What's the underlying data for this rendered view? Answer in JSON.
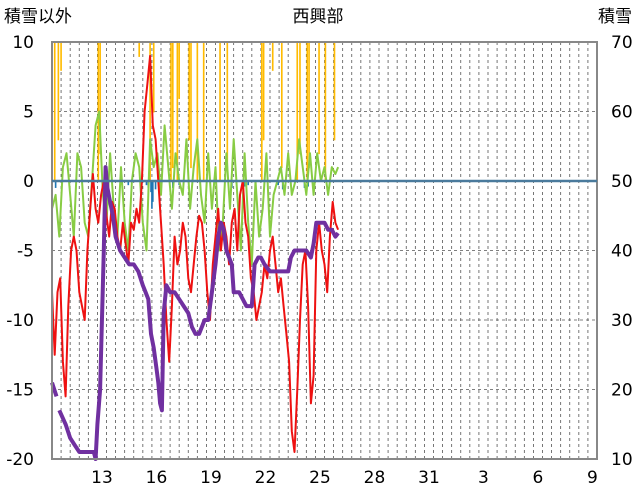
{
  "chart_data": {
    "type": "line",
    "title": "西興部",
    "left_axis_label": "積雪以外",
    "right_axis_label": "積雪",
    "y_left": {
      "min": -20,
      "max": 10,
      "ticks": [
        "10",
        "5",
        "0",
        "-5",
        "-10",
        "-15",
        "-20"
      ]
    },
    "y_right": {
      "min": 10,
      "max": 70,
      "ticks": [
        "70",
        "60",
        "50",
        "40",
        "30",
        "20",
        "10"
      ]
    },
    "x_range": [
      0,
      60
    ],
    "x_tick_labels": [
      {
        "x": 3,
        "label": "13"
      },
      {
        "x": 6,
        "label": "16"
      },
      {
        "x": 9,
        "label": "19"
      },
      {
        "x": 12,
        "label": "22"
      },
      {
        "x": 15,
        "label": "25"
      },
      {
        "x": 18,
        "label": "28"
      },
      {
        "x": 21,
        "label": "31"
      },
      {
        "x": 24,
        "label": "3"
      },
      {
        "x": 27,
        "label": "6"
      },
      {
        "x": 30,
        "label": "9"
      }
    ],
    "grid": {
      "vertical": true,
      "horizontal": true,
      "style": "dashed"
    },
    "colors": {
      "temperature": "#ee1111",
      "sunshine": "#88cc44",
      "precipitation": "#ffbb00",
      "snow_change": "#1f77b4",
      "snow_depth": "#7030a0",
      "frame": "#888888"
    },
    "series": [
      {
        "axis": "left",
        "style": "temperature",
        "points": [
          [
            0,
            -8
          ],
          [
            0.3,
            -12.5
          ],
          [
            0.6,
            -8
          ],
          [
            0.9,
            -7
          ],
          [
            1.2,
            -13
          ],
          [
            1.5,
            -15.5
          ],
          [
            1.8,
            -9
          ],
          [
            2.1,
            -5
          ],
          [
            2.4,
            -4
          ],
          [
            2.7,
            -5
          ],
          [
            3.0,
            -8
          ],
          [
            3.3,
            -9
          ],
          [
            3.6,
            -10
          ],
          [
            3.9,
            -5
          ],
          [
            4.2,
            -2
          ],
          [
            4.5,
            0.5
          ],
          [
            4.8,
            -2
          ],
          [
            5.1,
            -3
          ],
          [
            5.4,
            -1
          ],
          [
            5.7,
            0
          ],
          [
            6.0,
            -2.5
          ],
          [
            6.3,
            -4
          ],
          [
            6.6,
            -1.5
          ],
          [
            6.9,
            -2
          ],
          [
            7.2,
            -4
          ],
          [
            7.5,
            -5
          ],
          [
            7.8,
            -3
          ],
          [
            8.1,
            -4.5
          ],
          [
            8.4,
            -6
          ],
          [
            8.7,
            -3
          ],
          [
            9.0,
            -3.5
          ],
          [
            9.3,
            -2
          ],
          [
            9.6,
            -3
          ],
          [
            9.9,
            0
          ],
          [
            10.2,
            5
          ],
          [
            10.5,
            7
          ],
          [
            10.8,
            9
          ],
          [
            11.1,
            4
          ],
          [
            11.4,
            3
          ],
          [
            11.7,
            0
          ],
          [
            12.0,
            -3
          ],
          [
            12.3,
            -6
          ],
          [
            12.6,
            -10
          ],
          [
            12.9,
            -13
          ],
          [
            13.2,
            -9
          ],
          [
            13.5,
            -4
          ],
          [
            13.8,
            -6
          ],
          [
            14.1,
            -5
          ],
          [
            14.4,
            -3
          ],
          [
            14.7,
            -4
          ],
          [
            15.0,
            -7
          ],
          [
            15.3,
            -8
          ],
          [
            15.6,
            -6
          ],
          [
            15.9,
            -4
          ],
          [
            16.2,
            -2.5
          ],
          [
            16.5,
            -3
          ],
          [
            16.8,
            -5
          ],
          [
            17.1,
            -8
          ],
          [
            17.4,
            -10
          ],
          [
            17.7,
            -6
          ],
          [
            18.0,
            -4
          ],
          [
            18.3,
            -2
          ],
          [
            18.6,
            -5
          ],
          [
            18.9,
            -3
          ],
          [
            19.2,
            -4
          ],
          [
            19.5,
            -6
          ],
          [
            19.8,
            -3
          ],
          [
            20.1,
            -2
          ],
          [
            20.4,
            -5
          ],
          [
            20.7,
            -1
          ],
          [
            21.0,
            0
          ],
          [
            21.3,
            -3
          ],
          [
            21.6,
            -4
          ],
          [
            21.9,
            -7
          ],
          [
            22.2,
            -8
          ],
          [
            22.5,
            -10
          ],
          [
            22.8,
            -9
          ],
          [
            23.1,
            -8
          ],
          [
            23.4,
            -6
          ],
          [
            23.7,
            -7
          ],
          [
            24.0,
            -5
          ],
          [
            24.3,
            -4
          ],
          [
            24.6,
            -6
          ],
          [
            24.9,
            -8
          ],
          [
            25.2,
            -7
          ],
          [
            25.5,
            -9
          ],
          [
            25.8,
            -11
          ],
          [
            26.1,
            -13
          ],
          [
            26.4,
            -18
          ],
          [
            26.7,
            -19.5
          ],
          [
            27.0,
            -15
          ],
          [
            27.3,
            -10
          ],
          [
            27.6,
            -6
          ],
          [
            27.9,
            -5
          ],
          [
            28.2,
            -9
          ],
          [
            28.5,
            -16
          ],
          [
            28.8,
            -14
          ],
          [
            29.1,
            -5
          ],
          [
            29.4,
            -3
          ],
          [
            29.7,
            -5
          ],
          [
            30.0,
            -6
          ],
          [
            30.3,
            -8
          ],
          [
            30.6,
            -4
          ],
          [
            30.9,
            -1.5
          ],
          [
            31.2,
            -3
          ],
          [
            31.5,
            -3.5
          ]
        ]
      },
      {
        "axis": "left",
        "style": "sunshine",
        "points": [
          [
            0,
            -2
          ],
          [
            0.4,
            -1
          ],
          [
            0.8,
            -4
          ],
          [
            1.2,
            1
          ],
          [
            1.6,
            2
          ],
          [
            2.0,
            -1
          ],
          [
            2.4,
            -4
          ],
          [
            2.8,
            2
          ],
          [
            3.2,
            1
          ],
          [
            3.6,
            -3
          ],
          [
            4.0,
            -4
          ],
          [
            4.4,
            0
          ],
          [
            4.8,
            4
          ],
          [
            5.2,
            5
          ],
          [
            5.6,
            -1
          ],
          [
            6.0,
            -3
          ],
          [
            6.4,
            2
          ],
          [
            6.8,
            -2
          ],
          [
            7.2,
            -4
          ],
          [
            7.6,
            1
          ],
          [
            8.0,
            -3
          ],
          [
            8.4,
            -5
          ],
          [
            8.8,
            0
          ],
          [
            9.2,
            2
          ],
          [
            9.6,
            1
          ],
          [
            10.0,
            -3
          ],
          [
            10.4,
            -5
          ],
          [
            10.8,
            3
          ],
          [
            11.2,
            1
          ],
          [
            11.6,
            2
          ],
          [
            12.0,
            -1
          ],
          [
            12.4,
            4
          ],
          [
            12.8,
            1
          ],
          [
            13.2,
            -2
          ],
          [
            13.6,
            2
          ],
          [
            14.0,
            0
          ],
          [
            14.4,
            -1
          ],
          [
            14.8,
            3
          ],
          [
            15.2,
            -2
          ],
          [
            15.6,
            1
          ],
          [
            16.0,
            3
          ],
          [
            16.4,
            -1
          ],
          [
            16.8,
            -3
          ],
          [
            17.2,
            2
          ],
          [
            17.6,
            -2
          ],
          [
            18.0,
            1
          ],
          [
            18.4,
            -5
          ],
          [
            18.8,
            -3
          ],
          [
            19.2,
            2
          ],
          [
            19.6,
            -2
          ],
          [
            20.0,
            3
          ],
          [
            20.4,
            -1
          ],
          [
            20.8,
            -5
          ],
          [
            21.2,
            2
          ],
          [
            21.6,
            -3
          ],
          [
            22.0,
            -6
          ],
          [
            22.4,
            0
          ],
          [
            22.8,
            -4
          ],
          [
            23.2,
            -2
          ],
          [
            23.6,
            2
          ],
          [
            24.0,
            -4
          ],
          [
            24.4,
            -1
          ],
          [
            24.8,
            0
          ],
          [
            25.2,
            1
          ],
          [
            25.6,
            -1
          ],
          [
            26.0,
            2
          ],
          [
            26.4,
            -1
          ],
          [
            26.8,
            0
          ],
          [
            27.2,
            3
          ],
          [
            27.6,
            1
          ],
          [
            28.0,
            -1
          ],
          [
            28.4,
            2
          ],
          [
            28.8,
            -1
          ],
          [
            29.2,
            2
          ],
          [
            29.6,
            0
          ],
          [
            30.0,
            1
          ],
          [
            30.4,
            -1
          ],
          [
            30.8,
            1
          ],
          [
            31.2,
            0.5
          ],
          [
            31.5,
            1
          ]
        ]
      },
      {
        "axis": "right",
        "style": "snow_depth",
        "points": [
          [
            0,
            21
          ],
          [
            0.5,
            19
          ],
          [
            0.7,
            null
          ],
          [
            0.8,
            17
          ],
          [
            1.5,
            15
          ],
          [
            2.0,
            13
          ],
          [
            2.5,
            12
          ],
          [
            3.0,
            11
          ],
          [
            4.0,
            11
          ],
          [
            4.6,
            11
          ],
          [
            4.8,
            10
          ],
          [
            5.0,
            15
          ],
          [
            5.3,
            20
          ],
          [
            5.7,
            40
          ],
          [
            5.9,
            52
          ],
          [
            6.1,
            49
          ],
          [
            6.4,
            47
          ],
          [
            6.7,
            45
          ],
          [
            7.0,
            42
          ],
          [
            7.5,
            40
          ],
          [
            8.0,
            39
          ],
          [
            8.5,
            38
          ],
          [
            9.0,
            38
          ],
          [
            9.5,
            37
          ],
          [
            10.0,
            35
          ],
          [
            10.3,
            34
          ],
          [
            10.6,
            33
          ],
          [
            10.9,
            28
          ],
          [
            11.2,
            26
          ],
          [
            11.5,
            23
          ],
          [
            11.7,
            21
          ],
          [
            11.9,
            18
          ],
          [
            12.1,
            17
          ],
          [
            12.3,
            31
          ],
          [
            12.6,
            35
          ],
          [
            13.0,
            34
          ],
          [
            13.5,
            34
          ],
          [
            14.0,
            33
          ],
          [
            14.5,
            32
          ],
          [
            15.0,
            31
          ],
          [
            15.4,
            29
          ],
          [
            15.8,
            28
          ],
          [
            16.2,
            28
          ],
          [
            16.5,
            29
          ],
          [
            16.8,
            30
          ],
          [
            17.2,
            30
          ],
          [
            17.6,
            34
          ],
          [
            18.0,
            38
          ],
          [
            18.3,
            42
          ],
          [
            18.6,
            44
          ],
          [
            18.9,
            43
          ],
          [
            19.2,
            40
          ],
          [
            19.5,
            39
          ],
          [
            19.8,
            38
          ],
          [
            20.0,
            34
          ],
          [
            20.6,
            34
          ],
          [
            21.0,
            33
          ],
          [
            21.4,
            32
          ],
          [
            22.0,
            32
          ],
          [
            22.3,
            38
          ],
          [
            22.7,
            39
          ],
          [
            23.0,
            39
          ],
          [
            23.4,
            38
          ],
          [
            24.0,
            37
          ],
          [
            24.5,
            37
          ],
          [
            25.0,
            37
          ],
          [
            25.5,
            37
          ],
          [
            26.0,
            37
          ],
          [
            26.3,
            39
          ],
          [
            26.7,
            40
          ],
          [
            27.0,
            40
          ],
          [
            27.5,
            40
          ],
          [
            28.0,
            40
          ],
          [
            28.5,
            39
          ],
          [
            28.8,
            41
          ],
          [
            29.1,
            44
          ],
          [
            29.6,
            44
          ],
          [
            30.0,
            44
          ],
          [
            30.4,
            43
          ],
          [
            30.8,
            43
          ],
          [
            31.2,
            42
          ],
          [
            31.5,
            42.5
          ]
        ]
      }
    ],
    "bars_top_left": [
      {
        "x": 0.3,
        "v": 10
      },
      {
        "x": 0.7,
        "v": 7
      },
      {
        "x": 1.0,
        "v": 2
      },
      {
        "x": 5.1,
        "v": 10
      },
      {
        "x": 5.3,
        "v": 8
      },
      {
        "x": 9.6,
        "v": 1
      },
      {
        "x": 10.8,
        "v": 10
      },
      {
        "x": 11.2,
        "v": 5
      },
      {
        "x": 13.1,
        "v": 10
      },
      {
        "x": 13.3,
        "v": 9
      },
      {
        "x": 13.8,
        "v": 10
      },
      {
        "x": 14.0,
        "v": 4
      },
      {
        "x": 15.1,
        "v": 7
      },
      {
        "x": 15.3,
        "v": 9
      },
      {
        "x": 16.0,
        "v": 10
      },
      {
        "x": 16.7,
        "v": 10
      },
      {
        "x": 18.5,
        "v": 10
      },
      {
        "x": 19.3,
        "v": 9
      },
      {
        "x": 23.1,
        "v": 10
      },
      {
        "x": 23.3,
        "v": 7
      },
      {
        "x": 24.3,
        "v": 2
      },
      {
        "x": 25.3,
        "v": 9
      },
      {
        "x": 27.0,
        "v": 10
      },
      {
        "x": 27.3,
        "v": 8
      },
      {
        "x": 28.1,
        "v": 10
      },
      {
        "x": 28.3,
        "v": 9
      },
      {
        "x": 29.4,
        "v": 8
      },
      {
        "x": 30.1,
        "v": 10
      },
      {
        "x": 31.1,
        "v": 7
      }
    ],
    "bars_bottom_left": [
      {
        "x": 0.4,
        "v": -0.5
      },
      {
        "x": 4.5,
        "v": -0.4
      },
      {
        "x": 8.4,
        "v": -0.3
      },
      {
        "x": 10.4,
        "v": -0.3
      },
      {
        "x": 10.6,
        "v": -0.5
      },
      {
        "x": 10.9,
        "v": -0.8
      },
      {
        "x": 11.0,
        "v": -2
      },
      {
        "x": 11.1,
        "v": -1.5
      },
      {
        "x": 11.4,
        "v": -0.6
      },
      {
        "x": 13.3,
        "v": -0.5
      },
      {
        "x": 14.0,
        "v": -0.3
      },
      {
        "x": 19.8,
        "v": -0.5
      },
      {
        "x": 21.2,
        "v": -0.4
      },
      {
        "x": 21.6,
        "v": -0.3
      },
      {
        "x": 24.9,
        "v": -0.3
      },
      {
        "x": 25.4,
        "v": -0.6
      },
      {
        "x": 27.8,
        "v": -0.5
      },
      {
        "x": 28.2,
        "v": -0.4
      }
    ]
  }
}
